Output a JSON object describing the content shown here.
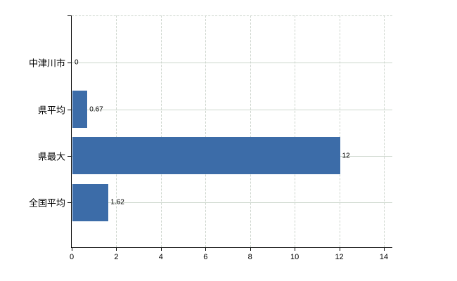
{
  "chart_data": {
    "type": "bar",
    "orientation": "horizontal",
    "title": "",
    "xlabel": "",
    "ylabel": "",
    "categories": [
      "中津川市",
      "県平均",
      "県最大",
      "全国平均"
    ],
    "values": [
      0,
      0.67,
      12,
      1.62
    ],
    "value_labels": [
      "0",
      "0.67",
      "12",
      "1.62"
    ],
    "xlim": [
      0,
      14
    ],
    "xticks": [
      "0",
      "2",
      "4",
      "6",
      "8",
      "10",
      "12",
      "14"
    ],
    "grid": "on",
    "legend": "none",
    "bar_color": "#3c6ca8",
    "gridline_color": "#ccd4cc",
    "axis_color": "#000000",
    "text_color": "#000000",
    "background_color": "#ffffff"
  }
}
